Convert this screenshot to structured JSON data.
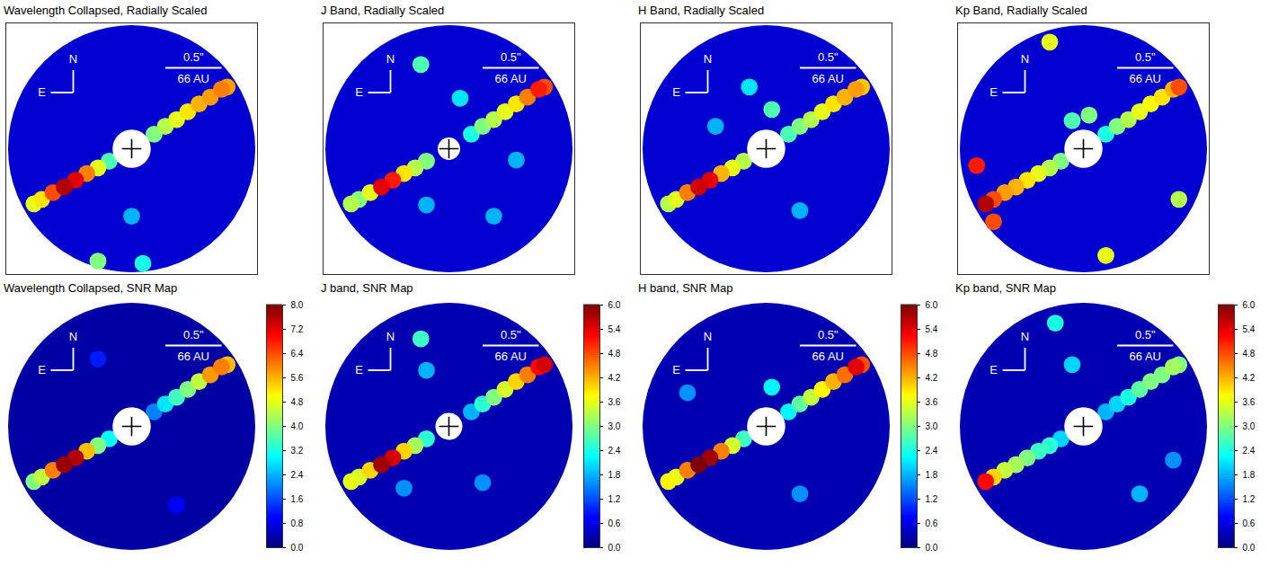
{
  "chart_data": [
    {
      "type": "heatmap",
      "title": "Wavelength Collapsed, Radially Scaled",
      "xlim": [
        -1.12,
        1.12
      ],
      "ylim": [
        -1.12,
        1.12
      ],
      "tick_labels": false,
      "field_radius": 1.1,
      "mask_radius": 0.17,
      "cell_size": 0.15,
      "background": 0.08,
      "color_range": [
        0,
        1
      ],
      "compass": {
        "north": "N",
        "east": "E"
      },
      "scale_bar": {
        "length": 0.5,
        "label": "0.5\"",
        "sublabel": "66 AU"
      },
      "cells": [
        [
          -0.2,
          -0.11,
          0.45
        ],
        [
          -0.3,
          -0.17,
          0.6
        ],
        [
          -0.4,
          -0.22,
          0.75
        ],
        [
          -0.5,
          -0.28,
          0.9
        ],
        [
          -0.6,
          -0.34,
          0.95
        ],
        [
          -0.7,
          -0.39,
          0.8
        ],
        [
          -0.8,
          -0.45,
          0.65
        ],
        [
          -0.87,
          -0.49,
          0.6
        ],
        [
          0.2,
          0.13,
          0.5
        ],
        [
          0.3,
          0.2,
          0.55
        ],
        [
          0.4,
          0.26,
          0.6
        ],
        [
          0.5,
          0.33,
          0.65
        ],
        [
          0.6,
          0.4,
          0.7
        ],
        [
          0.7,
          0.46,
          0.72
        ],
        [
          0.8,
          0.53,
          0.75
        ],
        [
          0.85,
          0.55,
          0.72
        ],
        [
          -0.3,
          -1.0,
          0.5
        ],
        [
          0.1,
          -1.02,
          0.4
        ],
        [
          0.0,
          -0.6,
          0.3
        ]
      ]
    },
    {
      "type": "heatmap",
      "title": "J Band, Radially Scaled",
      "xlim": [
        -1.12,
        1.12
      ],
      "ylim": [
        -1.12,
        1.12
      ],
      "tick_labels": false,
      "field_radius": 1.1,
      "mask_radius": 0.1,
      "cell_size": 0.15,
      "background": 0.08,
      "color_range": [
        0,
        1
      ],
      "compass": {
        "north": "N",
        "east": "E"
      },
      "scale_bar": {
        "length": 0.5,
        "label": "0.5\"",
        "sublabel": "66 AU"
      },
      "cells": [
        [
          -0.2,
          -0.11,
          0.5
        ],
        [
          -0.3,
          -0.17,
          0.55
        ],
        [
          -0.4,
          -0.22,
          0.65
        ],
        [
          -0.5,
          -0.28,
          0.85
        ],
        [
          -0.6,
          -0.34,
          0.9
        ],
        [
          -0.7,
          -0.39,
          0.6
        ],
        [
          -0.8,
          -0.45,
          0.5
        ],
        [
          -0.87,
          -0.49,
          0.55
        ],
        [
          0.2,
          0.13,
          0.4
        ],
        [
          0.3,
          0.2,
          0.5
        ],
        [
          0.4,
          0.26,
          0.55
        ],
        [
          0.5,
          0.33,
          0.6
        ],
        [
          0.6,
          0.4,
          0.65
        ],
        [
          0.7,
          0.46,
          0.75
        ],
        [
          0.8,
          0.53,
          0.85
        ],
        [
          0.85,
          0.55,
          0.8
        ],
        [
          -0.25,
          0.75,
          0.45
        ],
        [
          0.1,
          0.45,
          0.35
        ],
        [
          -0.2,
          -0.5,
          0.3
        ],
        [
          0.4,
          -0.6,
          0.3
        ],
        [
          0.6,
          -0.1,
          0.3
        ]
      ]
    },
    {
      "type": "heatmap",
      "title": "H Band, Radially Scaled",
      "xlim": [
        -1.12,
        1.12
      ],
      "ylim": [
        -1.12,
        1.12
      ],
      "tick_labels": false,
      "field_radius": 1.1,
      "mask_radius": 0.17,
      "cell_size": 0.15,
      "background": 0.08,
      "color_range": [
        0,
        1
      ],
      "compass": {
        "north": "N",
        "east": "E"
      },
      "scale_bar": {
        "length": 0.5,
        "label": "0.5\"",
        "sublabel": "66 AU"
      },
      "cells": [
        [
          -0.2,
          -0.11,
          0.55
        ],
        [
          -0.3,
          -0.17,
          0.6
        ],
        [
          -0.4,
          -0.22,
          0.7
        ],
        [
          -0.5,
          -0.28,
          0.9
        ],
        [
          -0.6,
          -0.34,
          0.92
        ],
        [
          -0.7,
          -0.39,
          0.75
        ],
        [
          -0.8,
          -0.45,
          0.6
        ],
        [
          -0.87,
          -0.49,
          0.55
        ],
        [
          0.2,
          0.13,
          0.45
        ],
        [
          0.3,
          0.2,
          0.5
        ],
        [
          0.4,
          0.26,
          0.55
        ],
        [
          0.5,
          0.33,
          0.6
        ],
        [
          0.6,
          0.4,
          0.65
        ],
        [
          0.7,
          0.46,
          0.7
        ],
        [
          0.8,
          0.53,
          0.72
        ],
        [
          0.85,
          0.55,
          0.68
        ],
        [
          0.05,
          0.35,
          0.45
        ],
        [
          -0.15,
          0.55,
          0.35
        ],
        [
          0.3,
          -0.55,
          0.3
        ],
        [
          -0.45,
          0.2,
          0.3
        ]
      ]
    },
    {
      "type": "heatmap",
      "title": "Kp Band, Radially Scaled",
      "xlim": [
        -1.12,
        1.12
      ],
      "ylim": [
        -1.12,
        1.12
      ],
      "tick_labels": false,
      "field_radius": 1.1,
      "mask_radius": 0.17,
      "cell_size": 0.15,
      "background": 0.08,
      "color_range": [
        0,
        1
      ],
      "compass": {
        "north": "N",
        "east": "E"
      },
      "scale_bar": {
        "length": 0.5,
        "label": "0.5\"",
        "sublabel": "66 AU"
      },
      "cells": [
        [
          -0.2,
          -0.11,
          0.5
        ],
        [
          -0.3,
          -0.17,
          0.55
        ],
        [
          -0.4,
          -0.22,
          0.6
        ],
        [
          -0.5,
          -0.28,
          0.65
        ],
        [
          -0.6,
          -0.34,
          0.7
        ],
        [
          -0.7,
          -0.39,
          0.72
        ],
        [
          -0.8,
          -0.45,
          0.8
        ],
        [
          -0.87,
          -0.49,
          0.95
        ],
        [
          0.2,
          0.13,
          0.4
        ],
        [
          0.3,
          0.2,
          0.5
        ],
        [
          0.4,
          0.26,
          0.55
        ],
        [
          0.5,
          0.33,
          0.6
        ],
        [
          0.6,
          0.4,
          0.62
        ],
        [
          0.7,
          0.46,
          0.65
        ],
        [
          0.8,
          0.53,
          0.7
        ],
        [
          0.85,
          0.55,
          0.8
        ],
        [
          -0.95,
          -0.15,
          0.85
        ],
        [
          -0.8,
          -0.65,
          0.8
        ],
        [
          -0.3,
          0.95,
          0.6
        ],
        [
          0.2,
          -0.95,
          0.6
        ],
        [
          0.85,
          -0.45,
          0.55
        ],
        [
          0.05,
          0.3,
          0.5
        ],
        [
          -0.1,
          0.25,
          0.45
        ]
      ]
    },
    {
      "type": "heatmap",
      "title": "Wavelength Collapsed, SNR Map",
      "xlim": [
        -1.12,
        1.12
      ],
      "ylim": [
        -1.12,
        1.12
      ],
      "tick_labels": false,
      "field_radius": 1.1,
      "mask_radius": 0.17,
      "cell_size": 0.15,
      "background": 0.3,
      "colorbar": {
        "range": [
          0,
          8
        ],
        "ticks": [
          {
            "value": 0,
            "label": "0.0"
          },
          0.8,
          1.6,
          2.4,
          3.2,
          {
            "value": 4,
            "label": "4.0"
          },
          4.8,
          5.6,
          6.4,
          7.2,
          {
            "value": 8,
            "label": "8.0"
          }
        ]
      },
      "compass": {
        "north": "N",
        "east": "E"
      },
      "scale_bar": {
        "length": 0.5,
        "label": "0.5\"",
        "sublabel": "66 AU"
      },
      "cells": [
        [
          -0.2,
          -0.11,
          3.0
        ],
        [
          -0.3,
          -0.17,
          4.0
        ],
        [
          -0.4,
          -0.22,
          5.5
        ],
        [
          -0.5,
          -0.28,
          7.6
        ],
        [
          -0.6,
          -0.34,
          7.8
        ],
        [
          -0.7,
          -0.39,
          6.0
        ],
        [
          -0.8,
          -0.45,
          4.5
        ],
        [
          -0.87,
          -0.49,
          4.0
        ],
        [
          0.2,
          0.13,
          2.0
        ],
        [
          0.3,
          0.2,
          2.8
        ],
        [
          0.4,
          0.26,
          3.5
        ],
        [
          0.5,
          0.33,
          4.0
        ],
        [
          0.6,
          0.4,
          4.5
        ],
        [
          0.7,
          0.46,
          5.8
        ],
        [
          0.8,
          0.53,
          6.0
        ],
        [
          0.85,
          0.55,
          5.5
        ],
        [
          -0.3,
          0.6,
          1.2
        ],
        [
          0.4,
          -0.7,
          1.0
        ]
      ]
    },
    {
      "type": "heatmap",
      "title": "J band, SNR Map",
      "xlim": [
        -1.12,
        1.12
      ],
      "ylim": [
        -1.12,
        1.12
      ],
      "tick_labels": false,
      "field_radius": 1.1,
      "mask_radius": 0.12,
      "cell_size": 0.15,
      "background": 0.3,
      "colorbar": {
        "range": [
          0,
          6
        ],
        "ticks": [
          {
            "value": 0,
            "label": "0.0"
          },
          0.6,
          1.2,
          1.8,
          2.4,
          {
            "value": 3,
            "label": "3.0"
          },
          3.6,
          4.2,
          4.8,
          5.4,
          {
            "value": 6,
            "label": "6.0"
          }
        ]
      },
      "compass": {
        "north": "N",
        "east": "E"
      },
      "scale_bar": {
        "length": 0.5,
        "label": "0.5\"",
        "sublabel": "66 AU"
      },
      "cells": [
        [
          -0.2,
          -0.11,
          2.5
        ],
        [
          -0.3,
          -0.17,
          3.2
        ],
        [
          -0.4,
          -0.22,
          4.0
        ],
        [
          -0.5,
          -0.28,
          5.5
        ],
        [
          -0.6,
          -0.34,
          5.8
        ],
        [
          -0.7,
          -0.39,
          4.0
        ],
        [
          -0.8,
          -0.45,
          3.5
        ],
        [
          -0.87,
          -0.49,
          3.6
        ],
        [
          0.2,
          0.13,
          1.8
        ],
        [
          0.3,
          0.2,
          2.5
        ],
        [
          0.4,
          0.26,
          3.0
        ],
        [
          0.5,
          0.33,
          3.5
        ],
        [
          0.6,
          0.4,
          4.0
        ],
        [
          0.7,
          0.46,
          4.5
        ],
        [
          0.8,
          0.53,
          5.2
        ],
        [
          0.85,
          0.55,
          5.5
        ],
        [
          -0.25,
          0.78,
          2.6
        ],
        [
          -0.2,
          0.5,
          1.8
        ],
        [
          0.3,
          -0.5,
          1.6
        ],
        [
          -0.4,
          -0.55,
          1.6
        ]
      ]
    },
    {
      "type": "heatmap",
      "title": "H band, SNR Map",
      "xlim": [
        -1.12,
        1.12
      ],
      "ylim": [
        -1.12,
        1.12
      ],
      "tick_labels": false,
      "field_radius": 1.1,
      "mask_radius": 0.17,
      "cell_size": 0.15,
      "background": 0.3,
      "colorbar": {
        "range": [
          0,
          6
        ],
        "ticks": [
          {
            "value": 0,
            "label": "0.0"
          },
          0.6,
          1.2,
          1.8,
          2.4,
          {
            "value": 3,
            "label": "3.0"
          },
          3.6,
          4.2,
          4.8,
          5.4,
          {
            "value": 6,
            "label": "6.0"
          }
        ]
      },
      "compass": {
        "north": "N",
        "east": "E"
      },
      "scale_bar": {
        "length": 0.5,
        "label": "0.5\"",
        "sublabel": "66 AU"
      },
      "cells": [
        [
          -0.2,
          -0.11,
          2.6
        ],
        [
          -0.3,
          -0.17,
          3.5
        ],
        [
          -0.4,
          -0.22,
          4.5
        ],
        [
          -0.5,
          -0.28,
          5.8
        ],
        [
          -0.6,
          -0.34,
          6.0
        ],
        [
          -0.7,
          -0.39,
          4.5
        ],
        [
          -0.8,
          -0.45,
          3.6
        ],
        [
          -0.87,
          -0.49,
          3.8
        ],
        [
          0.2,
          0.13,
          2.2
        ],
        [
          0.3,
          0.2,
          2.8
        ],
        [
          0.4,
          0.26,
          3.4
        ],
        [
          0.5,
          0.33,
          3.8
        ],
        [
          0.6,
          0.4,
          4.2
        ],
        [
          0.7,
          0.46,
          4.6
        ],
        [
          0.8,
          0.53,
          5.4
        ],
        [
          0.85,
          0.55,
          4.8
        ],
        [
          0.05,
          0.35,
          2.2
        ],
        [
          -0.7,
          0.3,
          1.6
        ],
        [
          0.3,
          -0.6,
          1.6
        ]
      ]
    },
    {
      "type": "heatmap",
      "title": "Kp band, SNR Map",
      "xlim": [
        -1.12,
        1.12
      ],
      "ylim": [
        -1.12,
        1.12
      ],
      "tick_labels": false,
      "field_radius": 1.1,
      "mask_radius": 0.17,
      "cell_size": 0.15,
      "background": 0.3,
      "colorbar": {
        "range": [
          0,
          6
        ],
        "ticks": [
          {
            "value": 0,
            "label": "0.0"
          },
          0.6,
          1.2,
          1.8,
          2.4,
          {
            "value": 3,
            "label": "3.0"
          },
          3.6,
          4.2,
          4.8,
          5.4,
          {
            "value": 6,
            "label": "6.0"
          }
        ]
      },
      "compass": {
        "north": "N",
        "east": "E"
      },
      "scale_bar": {
        "length": 0.5,
        "label": "0.5\"",
        "sublabel": "66 AU"
      },
      "cells": [
        [
          -0.2,
          -0.11,
          2.0
        ],
        [
          -0.3,
          -0.17,
          2.5
        ],
        [
          -0.4,
          -0.22,
          2.6
        ],
        [
          -0.5,
          -0.28,
          3.0
        ],
        [
          -0.6,
          -0.34,
          3.2
        ],
        [
          -0.7,
          -0.39,
          3.4
        ],
        [
          -0.8,
          -0.45,
          4.0
        ],
        [
          -0.87,
          -0.49,
          5.2
        ],
        [
          0.2,
          0.13,
          1.8
        ],
        [
          0.3,
          0.2,
          2.0
        ],
        [
          0.4,
          0.26,
          2.4
        ],
        [
          0.5,
          0.33,
          2.8
        ],
        [
          0.6,
          0.4,
          3.0
        ],
        [
          0.7,
          0.46,
          3.0
        ],
        [
          0.8,
          0.53,
          3.2
        ],
        [
          0.85,
          0.55,
          3.0
        ],
        [
          -0.25,
          0.92,
          2.4
        ],
        [
          -0.1,
          0.55,
          2.0
        ],
        [
          0.5,
          -0.6,
          1.8
        ],
        [
          0.8,
          -0.3,
          1.6
        ]
      ]
    }
  ]
}
